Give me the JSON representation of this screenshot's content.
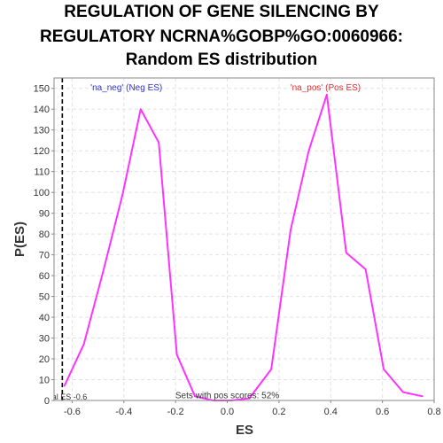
{
  "title_lines": [
    "REGULATION OF GENE SILENCING BY",
    "REGULATORY NCRNA%GOBP%GO:0060966:",
    "Random ES distribution"
  ],
  "chart_data": {
    "type": "line",
    "xlabel": "ES",
    "ylabel": "P(ES)",
    "xlim": [
      -0.67,
      0.8
    ],
    "ylim": [
      0,
      155
    ],
    "x_ticks": [
      -0.6,
      -0.4,
      -0.2,
      0.0,
      0.2,
      0.4,
      0.6,
      0.8
    ],
    "x_tick_labels": [
      "-0.6",
      "-0.4",
      "-0.2",
      "0.0",
      "0.2",
      "0.4",
      "0.6",
      "0.8"
    ],
    "y_ticks": [
      0,
      10,
      20,
      30,
      40,
      50,
      60,
      70,
      80,
      90,
      100,
      110,
      120,
      130,
      140,
      150
    ],
    "y_tick_labels": [
      "0",
      "10",
      "20",
      "30",
      "40",
      "50",
      "60",
      "70",
      "80",
      "90",
      "100",
      "110",
      "120",
      "130",
      "140",
      "150"
    ],
    "grid": true,
    "series": [
      {
        "color": "#ff33ff",
        "x": [
          -0.63,
          -0.555,
          -0.48,
          -0.405,
          -0.335,
          -0.265,
          -0.195,
          -0.125,
          -0.055,
          0.015,
          0.085,
          0.17,
          0.245,
          0.315,
          0.385,
          0.46,
          0.535,
          0.605,
          0.68,
          0.755
        ],
        "y": [
          7,
          27,
          62,
          99,
          140,
          124,
          22,
          2,
          0,
          0,
          1,
          15,
          82,
          120,
          147,
          71,
          63,
          15,
          4,
          2
        ]
      }
    ],
    "vline": {
      "x": -0.638,
      "style": "dashed",
      "color": "#000000",
      "label": "al ES -0.6"
    },
    "annotations": [
      {
        "text": "'na_neg' (Neg ES)",
        "x": -0.39,
        "y": 149,
        "color": "#3333cc"
      },
      {
        "text": "'na_pos' (Pos ES)",
        "x": 0.38,
        "y": 149,
        "color": "#e03030"
      },
      {
        "text": "Sets with pos scores: 52%",
        "x": 0.0,
        "y": 1,
        "color": "#333333"
      }
    ]
  }
}
